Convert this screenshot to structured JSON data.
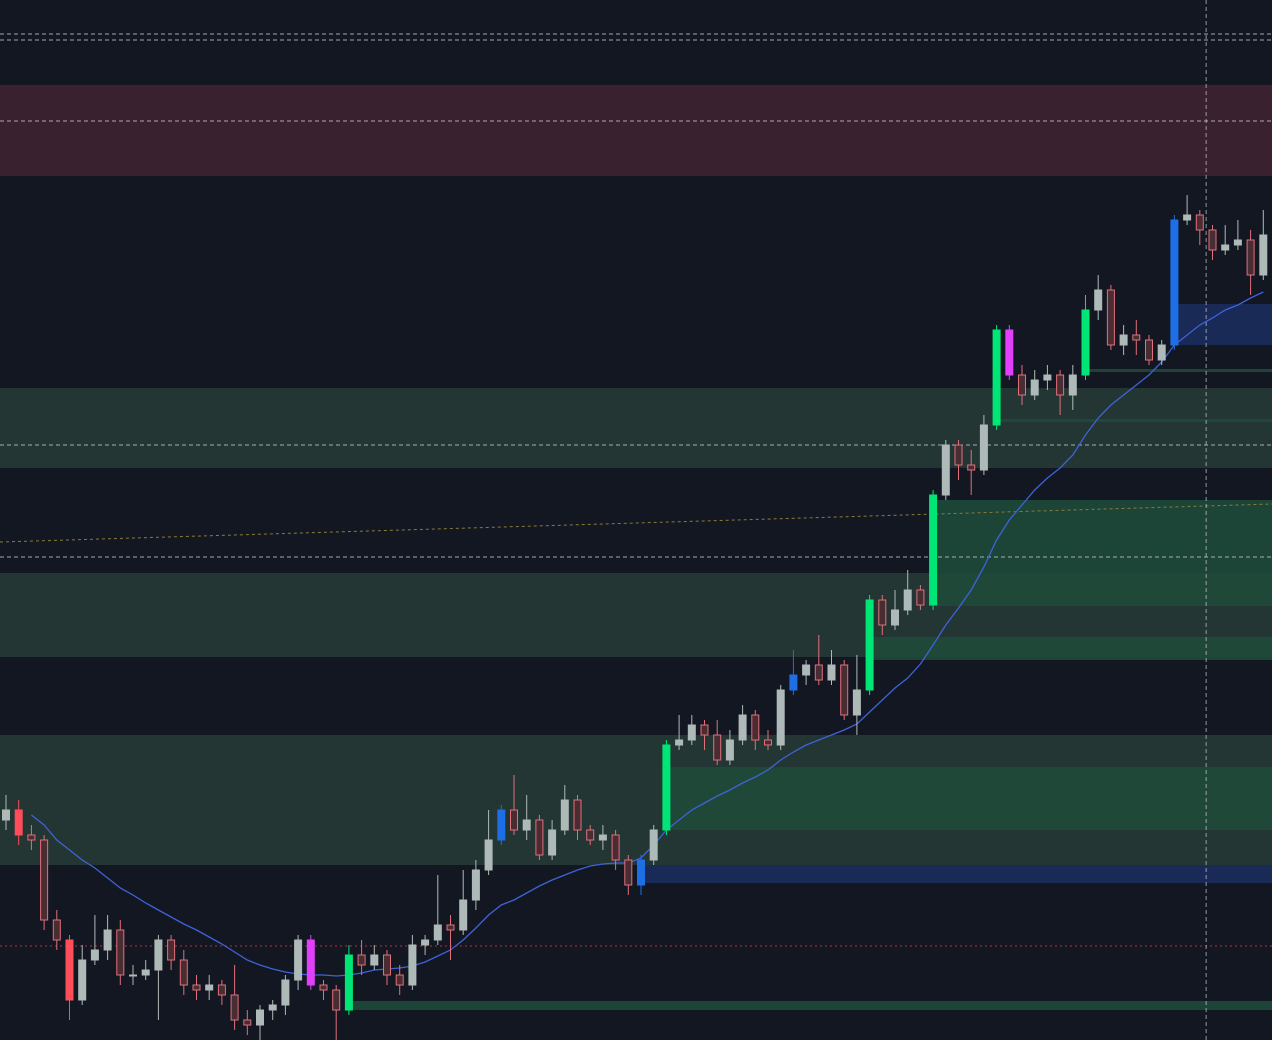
{
  "chart_data": {
    "type": "candlestick",
    "ylim": [
      0,
      1040
    ],
    "up_color": "#aebab8",
    "down_color": "#e0707a",
    "down_fill": "#4a2c33",
    "ma_color": "#3d63d8",
    "candles": [
      [
        220,
        245,
        210,
        230
      ],
      [
        230,
        240,
        195,
        205
      ],
      [
        205,
        215,
        190,
        200
      ],
      [
        200,
        205,
        110,
        120
      ],
      [
        120,
        130,
        90,
        100
      ],
      [
        100,
        105,
        20,
        40
      ],
      [
        40,
        95,
        35,
        80
      ],
      [
        80,
        125,
        75,
        90
      ],
      [
        90,
        125,
        80,
        110
      ],
      [
        110,
        120,
        55,
        65
      ],
      [
        65,
        75,
        55,
        65
      ],
      [
        65,
        80,
        60,
        70
      ],
      [
        70,
        105,
        20,
        100
      ],
      [
        100,
        105,
        70,
        80
      ],
      [
        80,
        90,
        45,
        55
      ],
      [
        55,
        65,
        40,
        50
      ],
      [
        50,
        65,
        40,
        55
      ],
      [
        55,
        60,
        35,
        45
      ],
      [
        45,
        75,
        10,
        20
      ],
      [
        20,
        30,
        5,
        15
      ],
      [
        15,
        35,
        0,
        30
      ],
      [
        30,
        40,
        20,
        35
      ],
      [
        35,
        65,
        25,
        60
      ],
      [
        60,
        105,
        50,
        100
      ],
      [
        100,
        105,
        50,
        55
      ],
      [
        55,
        60,
        40,
        50
      ],
      [
        50,
        55,
        0,
        30
      ],
      [
        30,
        95,
        25,
        85
      ],
      [
        85,
        100,
        65,
        75
      ],
      [
        75,
        95,
        70,
        85
      ],
      [
        85,
        90,
        55,
        65
      ],
      [
        65,
        75,
        45,
        55
      ],
      [
        55,
        105,
        50,
        95
      ],
      [
        95,
        105,
        85,
        100
      ],
      [
        100,
        165,
        95,
        115
      ],
      [
        115,
        125,
        80,
        110
      ],
      [
        110,
        170,
        105,
        140
      ],
      [
        140,
        180,
        130,
        170
      ],
      [
        170,
        230,
        165,
        200
      ],
      [
        200,
        235,
        195,
        230
      ],
      [
        230,
        265,
        205,
        210
      ],
      [
        210,
        245,
        200,
        220
      ],
      [
        220,
        225,
        180,
        185
      ],
      [
        185,
        220,
        180,
        210
      ],
      [
        210,
        255,
        205,
        240
      ],
      [
        240,
        245,
        200,
        210
      ],
      [
        210,
        215,
        195,
        200
      ],
      [
        200,
        215,
        190,
        205
      ],
      [
        205,
        210,
        170,
        180
      ],
      [
        180,
        185,
        145,
        155
      ],
      [
        155,
        185,
        145,
        180
      ],
      [
        180,
        215,
        175,
        210
      ],
      [
        210,
        300,
        205,
        295
      ],
      [
        295,
        325,
        290,
        300
      ],
      [
        300,
        325,
        295,
        315
      ],
      [
        315,
        320,
        290,
        305
      ],
      [
        305,
        320,
        275,
        280
      ],
      [
        280,
        310,
        275,
        300
      ],
      [
        300,
        335,
        295,
        325
      ],
      [
        325,
        330,
        290,
        300
      ],
      [
        300,
        310,
        290,
        295
      ],
      [
        295,
        355,
        290,
        350
      ],
      [
        350,
        390,
        345,
        365
      ],
      [
        365,
        380,
        355,
        375
      ],
      [
        375,
        405,
        355,
        360
      ],
      [
        360,
        390,
        355,
        375
      ],
      [
        375,
        380,
        320,
        325
      ],
      [
        325,
        385,
        305,
        350
      ],
      [
        350,
        445,
        345,
        440
      ],
      [
        440,
        445,
        405,
        415
      ],
      [
        415,
        450,
        410,
        430
      ],
      [
        430,
        470,
        425,
        450
      ],
      [
        450,
        455,
        430,
        435
      ],
      [
        435,
        550,
        430,
        545
      ],
      [
        545,
        600,
        540,
        595
      ],
      [
        595,
        600,
        560,
        575
      ],
      [
        575,
        590,
        545,
        570
      ],
      [
        570,
        625,
        565,
        615
      ],
      [
        615,
        715,
        610,
        710
      ],
      [
        710,
        715,
        660,
        665
      ],
      [
        665,
        675,
        635,
        645
      ],
      [
        645,
        670,
        640,
        660
      ],
      [
        660,
        675,
        650,
        665
      ],
      [
        665,
        670,
        625,
        645
      ],
      [
        645,
        675,
        630,
        665
      ],
      [
        665,
        745,
        660,
        730
      ],
      [
        730,
        765,
        720,
        750
      ],
      [
        750,
        755,
        690,
        695
      ],
      [
        695,
        715,
        685,
        705
      ],
      [
        705,
        720,
        685,
        700
      ],
      [
        700,
        705,
        675,
        680
      ],
      [
        680,
        700,
        675,
        695
      ],
      [
        695,
        825,
        690,
        820
      ],
      [
        820,
        845,
        815,
        825
      ],
      [
        825,
        830,
        795,
        810
      ],
      [
        810,
        815,
        780,
        790
      ],
      [
        790,
        815,
        785,
        795
      ],
      [
        795,
        820,
        790,
        800
      ],
      [
        800,
        810,
        745,
        765
      ],
      [
        765,
        830,
        760,
        805
      ]
    ],
    "highlights": [
      {
        "index": 1,
        "color": "#ff4d5a"
      },
      {
        "index": 5,
        "color": "#ff4d5a"
      },
      {
        "index": 24,
        "color": "#e040fb"
      },
      {
        "index": 27,
        "color": "#00e676"
      },
      {
        "index": 39,
        "color": "#1e6ee6"
      },
      {
        "index": 50,
        "color": "#1e6ee6"
      },
      {
        "index": 52,
        "color": "#00e676"
      },
      {
        "index": 62,
        "color": "#1e6ee6"
      },
      {
        "index": 68,
        "color": "#00e676"
      },
      {
        "index": 73,
        "color": "#00e676"
      },
      {
        "index": 78,
        "color": "#00e676"
      },
      {
        "index": 79,
        "color": "#e040fb"
      },
      {
        "index": 85,
        "color": "#00e676"
      },
      {
        "index": 92,
        "color": "#1e6ee6"
      }
    ],
    "ma": [
      null,
      null,
      225,
      215,
      200,
      190,
      180,
      172,
      162,
      152,
      145,
      137,
      130,
      123,
      116,
      110,
      103,
      96,
      88,
      80,
      75,
      71,
      68,
      66,
      65,
      65,
      64,
      65,
      67,
      70,
      71,
      72,
      74,
      78,
      84,
      90,
      100,
      112,
      125,
      135,
      140,
      147,
      154,
      160,
      165,
      170,
      174,
      176,
      177,
      177,
      182,
      195,
      210,
      220,
      230,
      237,
      244,
      250,
      257,
      263,
      270,
      280,
      288,
      295,
      300,
      305,
      310,
      316,
      328,
      340,
      352,
      362,
      376,
      395,
      415,
      432,
      450,
      473,
      500,
      520,
      535,
      550,
      562,
      572,
      585,
      605,
      622,
      635,
      645,
      655,
      665,
      678,
      695,
      705,
      715,
      722,
      730,
      735,
      742,
      748
    ],
    "zones": [
      {
        "low": 864,
        "high": 955,
        "from": 0,
        "color": "#3f2232"
      },
      {
        "low": 572,
        "high": 652,
        "from": 0,
        "color": "#263a35"
      },
      {
        "low": 383,
        "high": 467,
        "from": 0,
        "color": "#263a35"
      },
      {
        "low": 175,
        "high": 305,
        "from": 0,
        "color": "#263a35"
      },
      {
        "low": 434,
        "high": 540,
        "from": 73,
        "color": "#1f4a3a"
      },
      {
        "low": 380,
        "high": 403,
        "from": 68,
        "color": "#1f4a3a"
      },
      {
        "low": 210,
        "high": 273,
        "from": 52,
        "color": "#1f4a3a"
      },
      {
        "low": 157,
        "high": 175,
        "from": 50,
        "color": "#1c2c5c"
      },
      {
        "low": 695,
        "high": 736,
        "from": 92,
        "color": "#1c2c5c"
      },
      {
        "low": 30,
        "high": 39,
        "from": 27,
        "color": "#1f4a3a"
      },
      {
        "low": 668,
        "high": 671,
        "from": 85,
        "color": "#1f4a3a"
      },
      {
        "low": 618,
        "high": 621,
        "from": 78,
        "color": "#1f4a3a"
      }
    ],
    "levels": [
      1006,
      1000,
      919,
      595,
      483
    ],
    "level_color": "#c8cbd3",
    "red_level": 94,
    "red_level_color": "#b0303a",
    "trendline": [
      498,
      536
    ],
    "trendline_color": "#8a7a3a",
    "crosshair_index": 94.5
  }
}
